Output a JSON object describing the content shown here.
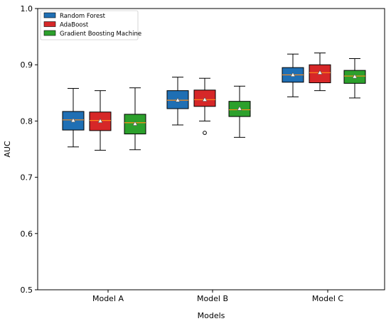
{
  "chart_data": {
    "type": "box",
    "xlabel": "Models",
    "ylabel": "AUC",
    "ylim": [
      0.5,
      1.0
    ],
    "yticks": [
      0.5,
      0.6,
      0.7,
      0.8,
      0.9,
      1.0
    ],
    "ytick_labels": [
      "0.5",
      "0.6",
      "0.7",
      "0.8",
      "0.9",
      "1.0"
    ],
    "categories": [
      "Model A",
      "Model B",
      "Model C"
    ],
    "legend_position": "top-left",
    "grid": false,
    "series": [
      {
        "name": "Random Forest",
        "color": "#1f6fb4",
        "boxes": [
          {
            "whisker_low": 0.754,
            "q1": 0.784,
            "median": 0.802,
            "q3": 0.817,
            "whisker_high": 0.858,
            "mean": 0.801,
            "outliers": []
          },
          {
            "whisker_low": 0.793,
            "q1": 0.822,
            "median": 0.837,
            "q3": 0.854,
            "whisker_high": 0.878,
            "mean": 0.837,
            "outliers": []
          },
          {
            "whisker_low": 0.843,
            "q1": 0.869,
            "median": 0.882,
            "q3": 0.895,
            "whisker_high": 0.919,
            "mean": 0.882,
            "outliers": []
          }
        ]
      },
      {
        "name": "AdaBoost",
        "color": "#d62728",
        "boxes": [
          {
            "whisker_low": 0.748,
            "q1": 0.783,
            "median": 0.801,
            "q3": 0.816,
            "whisker_high": 0.854,
            "mean": 0.8,
            "outliers": []
          },
          {
            "whisker_low": 0.8,
            "q1": 0.826,
            "median": 0.838,
            "q3": 0.855,
            "whisker_high": 0.876,
            "mean": 0.838,
            "outliers": [
              0.779
            ]
          },
          {
            "whisker_low": 0.854,
            "q1": 0.868,
            "median": 0.886,
            "q3": 0.9,
            "whisker_high": 0.921,
            "mean": 0.886,
            "outliers": []
          }
        ]
      },
      {
        "name": "Gradient Boosting Machine",
        "color": "#2ca02c",
        "boxes": [
          {
            "whisker_low": 0.749,
            "q1": 0.777,
            "median": 0.797,
            "q3": 0.812,
            "whisker_high": 0.859,
            "mean": 0.795,
            "outliers": []
          },
          {
            "whisker_low": 0.771,
            "q1": 0.808,
            "median": 0.82,
            "q3": 0.835,
            "whisker_high": 0.862,
            "mean": 0.822,
            "outliers": []
          },
          {
            "whisker_low": 0.841,
            "q1": 0.867,
            "median": 0.88,
            "q3": 0.89,
            "whisker_high": 0.911,
            "mean": 0.879,
            "outliers": []
          }
        ]
      }
    ]
  }
}
